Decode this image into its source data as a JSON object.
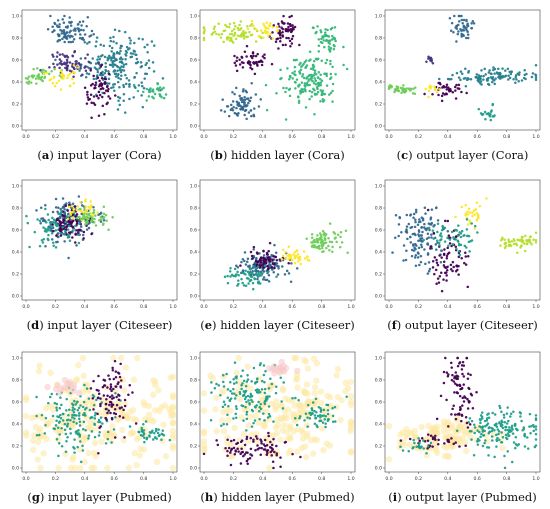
{
  "chart_data": [
    {
      "type": "scatter",
      "panel_id": "a",
      "caption_letter": "a",
      "caption_text": "input layer (Cora)",
      "dataset": "cora",
      "layer": "input",
      "x_ticks": [
        "0.0",
        "0.2",
        "0.4",
        "0.6",
        "0.8",
        "1.0"
      ],
      "y_ticks": [
        "0.0",
        "0.2",
        "0.4",
        "0.6",
        "0.8",
        "1.0"
      ],
      "xlim": [
        0,
        1
      ],
      "ylim": [
        0,
        1
      ],
      "grid": false,
      "clusters": [
        {
          "color": "#277f8e",
          "cx": 0.62,
          "cy": 0.55,
          "sx": 0.12,
          "sy": 0.14,
          "n": 220
        },
        {
          "color": "#31688e",
          "cx": 0.3,
          "cy": 0.86,
          "sx": 0.07,
          "sy": 0.06,
          "n": 90
        },
        {
          "color": "#46337f",
          "cx": 0.3,
          "cy": 0.57,
          "sx": 0.07,
          "sy": 0.05,
          "n": 70
        },
        {
          "color": "#440154",
          "cx": 0.5,
          "cy": 0.3,
          "sx": 0.05,
          "sy": 0.1,
          "n": 60
        },
        {
          "color": "#6ece58",
          "cx": 0.08,
          "cy": 0.45,
          "sx": 0.06,
          "sy": 0.05,
          "n": 40
        },
        {
          "color": "#fde725",
          "cx": 0.25,
          "cy": 0.45,
          "sx": 0.06,
          "sy": 0.06,
          "n": 30
        },
        {
          "color": "#35b779",
          "cx": 0.88,
          "cy": 0.32,
          "sx": 0.05,
          "sy": 0.04,
          "n": 30
        }
      ]
    },
    {
      "type": "scatter",
      "panel_id": "b",
      "caption_letter": "b",
      "caption_text": "hidden layer (Cora)",
      "dataset": "cora",
      "layer": "hidden",
      "x_ticks": [
        "0.0",
        "0.2",
        "0.4",
        "0.6",
        "0.8",
        "1.0"
      ],
      "y_ticks": [
        "0.0",
        "0.2",
        "0.4",
        "0.6",
        "0.8",
        "1.0"
      ],
      "xlim": [
        0,
        1
      ],
      "ylim": [
        0,
        1
      ],
      "grid": false,
      "clusters": [
        {
          "color": "#35b779",
          "cx": 0.72,
          "cy": 0.42,
          "sx": 0.09,
          "sy": 0.12,
          "n": 170
        },
        {
          "color": "#31688e",
          "cx": 0.25,
          "cy": 0.2,
          "sx": 0.06,
          "sy": 0.07,
          "n": 80
        },
        {
          "color": "#b5de2b",
          "cx": 0.2,
          "cy": 0.85,
          "sx": 0.12,
          "sy": 0.05,
          "n": 80
        },
        {
          "color": "#440154",
          "cx": 0.55,
          "cy": 0.85,
          "sx": 0.05,
          "sy": 0.06,
          "n": 60
        },
        {
          "color": "#440154",
          "cx": 0.32,
          "cy": 0.6,
          "sx": 0.06,
          "sy": 0.04,
          "n": 50
        },
        {
          "color": "#fde725",
          "cx": 0.4,
          "cy": 0.88,
          "sx": 0.05,
          "sy": 0.04,
          "n": 30
        },
        {
          "color": "#35b779",
          "cx": 0.82,
          "cy": 0.8,
          "sx": 0.05,
          "sy": 0.06,
          "n": 50
        }
      ]
    },
    {
      "type": "scatter",
      "panel_id": "c",
      "caption_letter": "c",
      "caption_text": "output layer (Cora)",
      "dataset": "cora",
      "layer": "output",
      "x_ticks": [
        "0.0",
        "0.2",
        "0.4",
        "0.6",
        "0.8",
        "1.0"
      ],
      "y_ticks": [
        "0.0",
        "0.2",
        "0.4",
        "0.6",
        "0.8",
        "1.0"
      ],
      "xlim": [
        0,
        1
      ],
      "ylim": [
        0,
        1
      ],
      "grid": false,
      "clusters": [
        {
          "color": "#277f8e",
          "cx": 0.72,
          "cy": 0.45,
          "sx": 0.16,
          "sy": 0.04,
          "n": 120
        },
        {
          "color": "#31688e",
          "cx": 0.5,
          "cy": 0.9,
          "sx": 0.04,
          "sy": 0.06,
          "n": 50
        },
        {
          "color": "#6ece58",
          "cx": 0.08,
          "cy": 0.33,
          "sx": 0.05,
          "sy": 0.02,
          "n": 40
        },
        {
          "color": "#440154",
          "cx": 0.4,
          "cy": 0.32,
          "sx": 0.06,
          "sy": 0.04,
          "n": 40
        },
        {
          "color": "#1f9e89",
          "cx": 0.68,
          "cy": 0.12,
          "sx": 0.03,
          "sy": 0.04,
          "n": 20
        },
        {
          "color": "#46337f",
          "cx": 0.28,
          "cy": 0.6,
          "sx": 0.02,
          "sy": 0.02,
          "n": 10
        },
        {
          "color": "#fde725",
          "cx": 0.3,
          "cy": 0.33,
          "sx": 0.03,
          "sy": 0.02,
          "n": 12
        }
      ]
    },
    {
      "type": "scatter",
      "panel_id": "d",
      "caption_letter": "d",
      "caption_text": "input layer (Citeseer)",
      "dataset": "citeseer",
      "layer": "input",
      "x_ticks": [
        "0.0",
        "0.2",
        "0.4",
        "0.6",
        "0.8",
        "1.0"
      ],
      "y_ticks": [
        "0.0",
        "0.2",
        "0.4",
        "0.6",
        "0.8",
        "1.0"
      ],
      "xlim": [
        0,
        1
      ],
      "ylim": [
        0,
        1
      ],
      "grid": false,
      "clusters": [
        {
          "color": "#31688e",
          "cx": 0.28,
          "cy": 0.68,
          "sx": 0.09,
          "sy": 0.1,
          "n": 160
        },
        {
          "color": "#440154",
          "cx": 0.3,
          "cy": 0.65,
          "sx": 0.06,
          "sy": 0.07,
          "n": 90
        },
        {
          "color": "#fde725",
          "cx": 0.38,
          "cy": 0.78,
          "sx": 0.05,
          "sy": 0.05,
          "n": 40
        },
        {
          "color": "#6ece58",
          "cx": 0.45,
          "cy": 0.7,
          "sx": 0.06,
          "sy": 0.05,
          "n": 50
        },
        {
          "color": "#1f9e89",
          "cx": 0.2,
          "cy": 0.6,
          "sx": 0.08,
          "sy": 0.08,
          "n": 60
        }
      ]
    },
    {
      "type": "scatter",
      "panel_id": "e",
      "caption_letter": "e",
      "caption_text": "hidden layer (Citeseer)",
      "dataset": "citeseer",
      "layer": "hidden",
      "x_ticks": [
        "0.0",
        "0.2",
        "0.4",
        "0.6",
        "0.8",
        "1.0"
      ],
      "y_ticks": [
        "0.0",
        "0.2",
        "0.4",
        "0.6",
        "0.8",
        "1.0"
      ],
      "xlim": [
        0,
        1
      ],
      "ylim": [
        0,
        1
      ],
      "grid": false,
      "clusters": [
        {
          "color": "#31688e",
          "cx": 0.4,
          "cy": 0.28,
          "sx": 0.08,
          "sy": 0.07,
          "n": 130
        },
        {
          "color": "#440154",
          "cx": 0.42,
          "cy": 0.32,
          "sx": 0.06,
          "sy": 0.05,
          "n": 70
        },
        {
          "color": "#6ece58",
          "cx": 0.8,
          "cy": 0.5,
          "sx": 0.06,
          "sy": 0.05,
          "n": 80
        },
        {
          "color": "#fde725",
          "cx": 0.62,
          "cy": 0.35,
          "sx": 0.05,
          "sy": 0.04,
          "n": 40
        },
        {
          "color": "#1f9e89",
          "cx": 0.3,
          "cy": 0.18,
          "sx": 0.07,
          "sy": 0.05,
          "n": 60
        }
      ]
    },
    {
      "type": "scatter",
      "panel_id": "f",
      "caption_letter": "f",
      "caption_text": "output layer (Citeseer)",
      "dataset": "citeseer",
      "layer": "output",
      "x_ticks": [
        "0.0",
        "0.2",
        "0.4",
        "0.6",
        "0.8",
        "1.0"
      ],
      "y_ticks": [
        "0.0",
        "0.2",
        "0.4",
        "0.6",
        "0.8",
        "1.0"
      ],
      "xlim": [
        0,
        1
      ],
      "ylim": [
        0,
        1
      ],
      "grid": false,
      "clusters": [
        {
          "color": "#31688e",
          "cx": 0.2,
          "cy": 0.55,
          "sx": 0.08,
          "sy": 0.15,
          "n": 130
        },
        {
          "color": "#440154",
          "cx": 0.4,
          "cy": 0.35,
          "sx": 0.06,
          "sy": 0.12,
          "n": 80
        },
        {
          "color": "#b5de2b",
          "cx": 0.88,
          "cy": 0.5,
          "sx": 0.08,
          "sy": 0.03,
          "n": 60
        },
        {
          "color": "#fde725",
          "cx": 0.55,
          "cy": 0.75,
          "sx": 0.04,
          "sy": 0.05,
          "n": 30
        },
        {
          "color": "#1f9e89",
          "cx": 0.45,
          "cy": 0.55,
          "sx": 0.08,
          "sy": 0.08,
          "n": 60
        }
      ]
    },
    {
      "type": "scatter",
      "panel_id": "g",
      "caption_letter": "g",
      "caption_text": "input layer (Pubmed)",
      "dataset": "pubmed",
      "layer": "input",
      "x_ticks": [
        "0.0",
        "0.2",
        "0.4",
        "0.6",
        "0.8",
        "1.0"
      ],
      "y_ticks": [
        "0.0",
        "0.2",
        "0.4",
        "0.6",
        "0.8",
        "1.0"
      ],
      "xlim": [
        0,
        1
      ],
      "ylim": [
        0,
        1
      ],
      "grid": false,
      "clusters": [
        {
          "color": "#fde8a0",
          "cx": 0.5,
          "cy": 0.45,
          "sx": 0.28,
          "sy": 0.22,
          "n": 220
        },
        {
          "color": "#1f9e89",
          "cx": 0.35,
          "cy": 0.45,
          "sx": 0.12,
          "sy": 0.14,
          "n": 160
        },
        {
          "color": "#440154",
          "cx": 0.58,
          "cy": 0.65,
          "sx": 0.06,
          "sy": 0.16,
          "n": 90
        },
        {
          "color": "#1f9e89",
          "cx": 0.85,
          "cy": 0.3,
          "sx": 0.06,
          "sy": 0.04,
          "n": 40
        },
        {
          "color": "#f5c6c6",
          "cx": 0.25,
          "cy": 0.75,
          "sx": 0.05,
          "sy": 0.04,
          "n": 15
        }
      ]
    },
    {
      "type": "scatter",
      "panel_id": "h",
      "caption_letter": "h",
      "caption_text": "hidden layer (Pubmed)",
      "dataset": "pubmed",
      "layer": "hidden",
      "x_ticks": [
        "0.0",
        "0.2",
        "0.4",
        "0.6",
        "0.8",
        "1.0"
      ],
      "y_ticks": [
        "0.0",
        "0.2",
        "0.4",
        "0.6",
        "0.8",
        "1.0"
      ],
      "xlim": [
        0,
        1
      ],
      "ylim": [
        0,
        1
      ],
      "grid": false,
      "clusters": [
        {
          "color": "#fde8a0",
          "cx": 0.55,
          "cy": 0.5,
          "sx": 0.28,
          "sy": 0.22,
          "n": 220
        },
        {
          "color": "#1f9e89",
          "cx": 0.3,
          "cy": 0.65,
          "sx": 0.12,
          "sy": 0.14,
          "n": 150
        },
        {
          "color": "#440154",
          "cx": 0.35,
          "cy": 0.18,
          "sx": 0.12,
          "sy": 0.07,
          "n": 90
        },
        {
          "color": "#1f9e89",
          "cx": 0.78,
          "cy": 0.5,
          "sx": 0.08,
          "sy": 0.08,
          "n": 60
        },
        {
          "color": "#f5c6c6",
          "cx": 0.5,
          "cy": 0.9,
          "sx": 0.06,
          "sy": 0.03,
          "n": 15
        }
      ]
    },
    {
      "type": "scatter",
      "panel_id": "i",
      "caption_letter": "i",
      "caption_text": "output layer (Pubmed)",
      "dataset": "pubmed",
      "layer": "output",
      "x_ticks": [
        "0.0",
        "0.2",
        "0.4",
        "0.6",
        "0.8",
        "1.0"
      ],
      "y_ticks": [
        "0.0",
        "0.2",
        "0.4",
        "0.6",
        "0.8",
        "1.0"
      ],
      "xlim": [
        0,
        1
      ],
      "ylim": [
        0,
        1
      ],
      "grid": false,
      "clusters": [
        {
          "color": "#fde8a0",
          "cx": 0.35,
          "cy": 0.28,
          "sx": 0.15,
          "sy": 0.1,
          "n": 120
        },
        {
          "color": "#1f9e89",
          "cx": 0.78,
          "cy": 0.35,
          "sx": 0.12,
          "sy": 0.1,
          "n": 170
        },
        {
          "color": "#440154",
          "cx": 0.48,
          "cy": 0.7,
          "sx": 0.05,
          "sy": 0.2,
          "n": 90
        },
        {
          "color": "#440154",
          "cx": 0.3,
          "cy": 0.25,
          "sx": 0.08,
          "sy": 0.04,
          "n": 30
        },
        {
          "color": "#1f9e89",
          "cx": 0.2,
          "cy": 0.2,
          "sx": 0.05,
          "sy": 0.03,
          "n": 20
        }
      ]
    }
  ]
}
